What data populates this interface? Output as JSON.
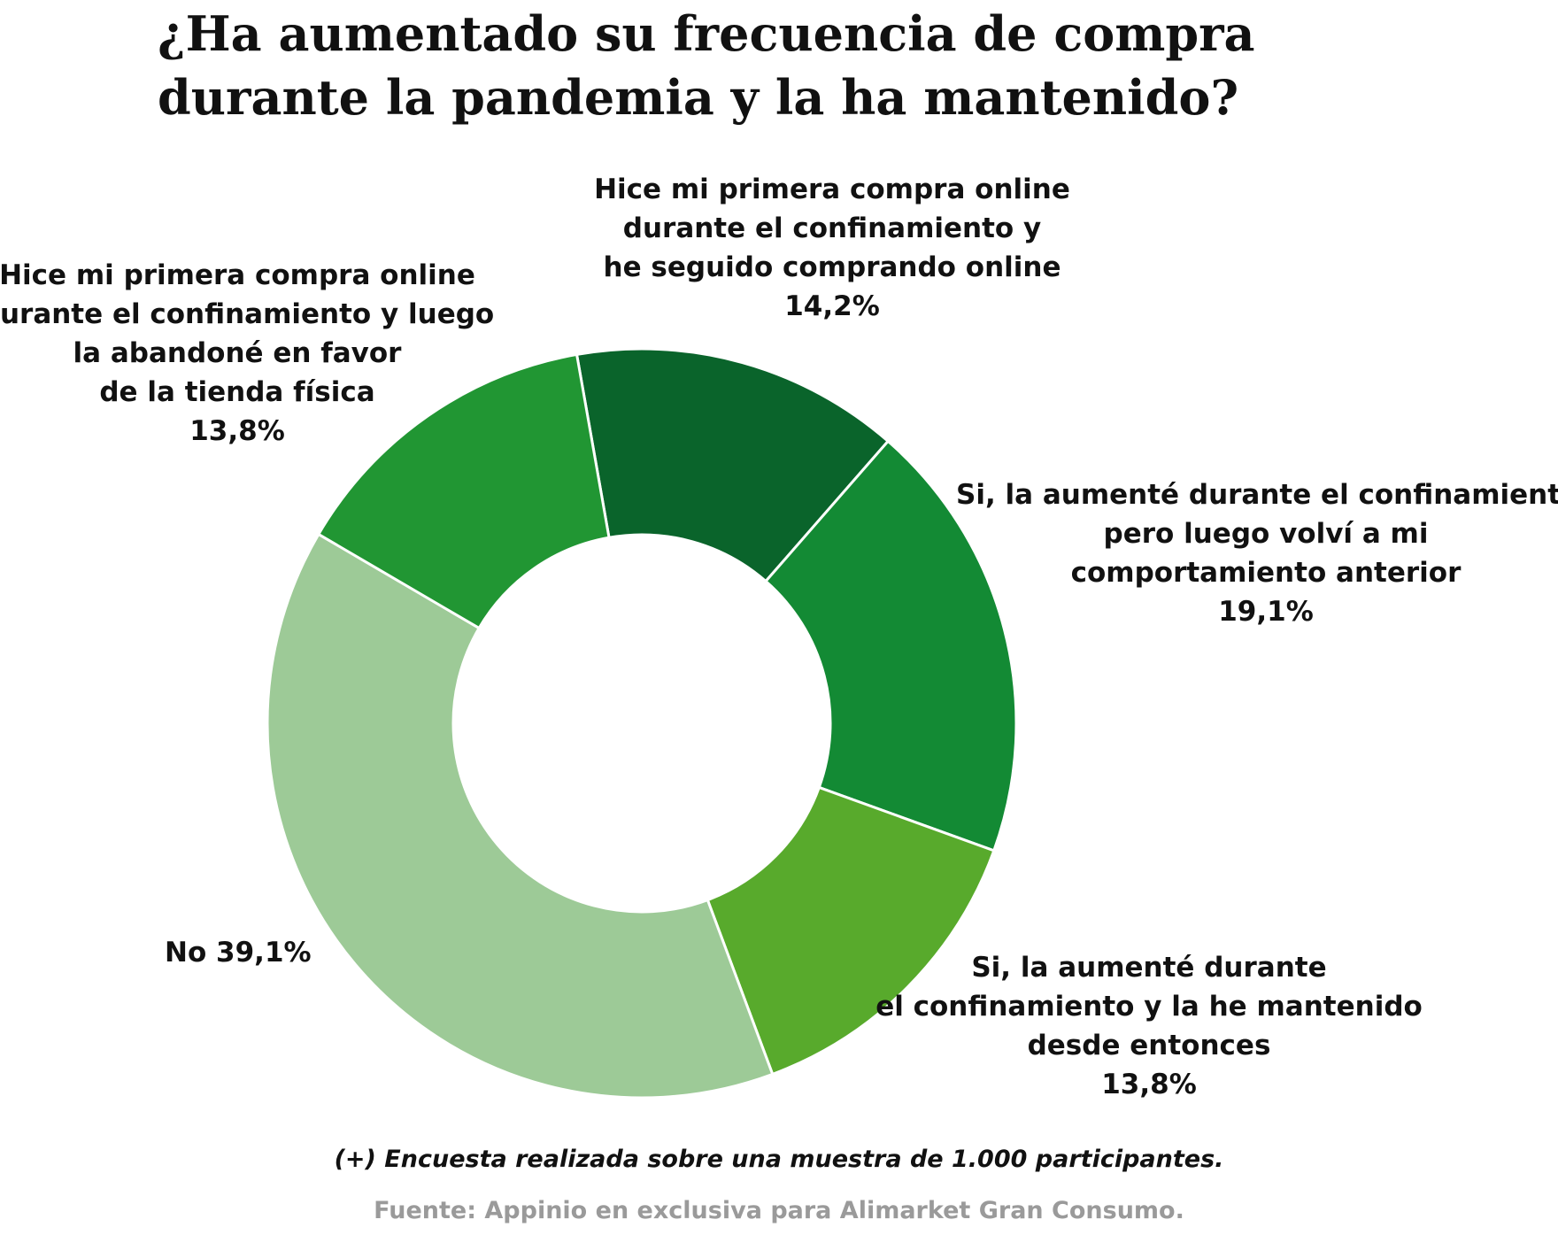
{
  "chart_data": {
    "type": "pie",
    "donut": true,
    "title": "¿Ha aumentado su frecuencia de compra durante la pandemia y la ha mantenido?",
    "title_lines": [
      "¿Ha aumentado su frecuencia de compra",
      "durante la pandemia y la ha mantenido?"
    ],
    "slices": [
      {
        "label_lines": [
          "Hice mi primera compra online",
          "durante el confinamiento y",
          "he seguido comprando online"
        ],
        "value_label": "14,2%",
        "value": 14.2,
        "color": "#0a642b"
      },
      {
        "label_lines": [
          "Si, la aumenté durante el confinamiento",
          "pero luego volví a mi",
          "comportamiento anterior"
        ],
        "value_label": "19,1%",
        "value": 19.1,
        "color": "#138a34"
      },
      {
        "label_lines": [
          "Si, la aumenté durante",
          "el confinamiento y la he mantenido",
          "desde entonces"
        ],
        "value_label": "13,8%",
        "value": 13.8,
        "color": "#58aa2c"
      },
      {
        "label_lines": [
          "No 39,1%"
        ],
        "value_label": "",
        "value": 39.1,
        "color": "#9dca97"
      },
      {
        "label_lines": [
          "Hice mi primera compra online",
          "durante el confinamiento y luego",
          "la abandoné en favor",
          "de la tienda física"
        ],
        "value_label": "13,8%",
        "value": 13.8,
        "color": "#219633"
      }
    ]
  },
  "footnote": "(+) Encuesta realizada sobre una muestra de 1.000 participantes.",
  "source": "Fuente: Appinio en exclusiva para Alimarket Gran Consumo."
}
